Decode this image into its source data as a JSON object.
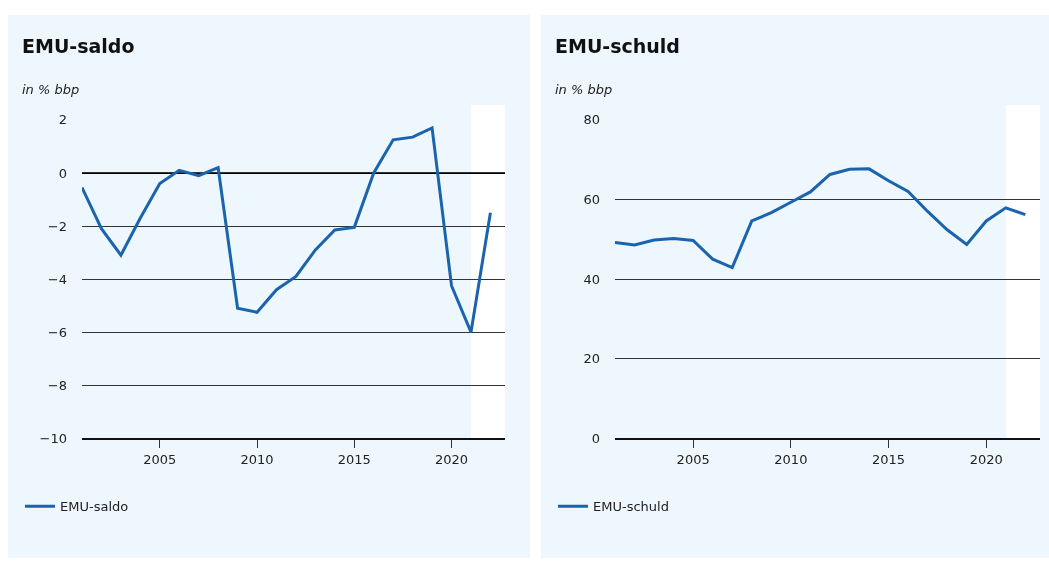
{
  "chart_data": [
    {
      "type": "line",
      "title": "EMU-saldo",
      "ylabel": "in % bbp",
      "x": [
        2001,
        2002,
        2003,
        2004,
        2005,
        2006,
        2007,
        2008,
        2009,
        2010,
        2011,
        2012,
        2013,
        2014,
        2015,
        2016,
        2017,
        2018,
        2019,
        2020,
        2021,
        2022
      ],
      "series": [
        {
          "name": "EMU-saldo",
          "color": "#1a64ae",
          "values": [
            -0.55,
            -2.1,
            -3.1,
            -1.7,
            -0.4,
            0.1,
            -0.1,
            0.2,
            -5.1,
            -5.25,
            -4.4,
            -3.9,
            -2.9,
            -2.15,
            -2.05,
            0,
            1.25,
            1.35,
            1.7,
            -4.25,
            -6,
            -1.5
          ]
        }
      ],
      "xlim": [
        2001,
        2022.75
      ],
      "xticks": [
        2005,
        2010,
        2015,
        2020
      ],
      "ylim": [
        -10,
        2
      ],
      "yticks": [
        {
          "value": -10,
          "label": "−10"
        },
        {
          "value": -8,
          "label": "−8"
        },
        {
          "value": -6,
          "label": "−6"
        },
        {
          "value": -4,
          "label": "−4"
        },
        {
          "value": -2,
          "label": "−2"
        },
        0,
        2
      ],
      "ref_lines": [
        {
          "axis": "y",
          "value": 0,
          "color": "#000000"
        }
      ],
      "bands": [
        {
          "axis": "x",
          "from": 2021,
          "to": 2022.75,
          "color": "#ffffff"
        }
      ],
      "grid": "y",
      "legend": "bottom left",
      "marker": "none",
      "line_style": "solid"
    },
    {
      "type": "line",
      "title": "EMU-schuld",
      "ylabel": "in % bbp",
      "x": [
        2001,
        2002,
        2003,
        2004,
        2005,
        2006,
        2007,
        2008,
        2009,
        2010,
        2011,
        2012,
        2013,
        2014,
        2015,
        2016,
        2017,
        2018,
        2019,
        2020,
        2021,
        2022
      ],
      "series": [
        {
          "name": "EMU-schuld",
          "color": "#1a64ae",
          "values": [
            49.2,
            48.6,
            49.8,
            50.2,
            49.7,
            45.0,
            42.9,
            54.6,
            56.7,
            59.3,
            61.9,
            66.3,
            67.6,
            67.7,
            64.7,
            62.0,
            57.0,
            52.4,
            48.7,
            54.6,
            57.9,
            56.2
          ]
        }
      ],
      "xlim": [
        2001,
        2022.75
      ],
      "xticks": [
        2005,
        2010,
        2015,
        2020
      ],
      "ylim": [
        0,
        80
      ],
      "yticks": [
        0,
        20,
        40,
        60,
        80
      ],
      "bands": [
        {
          "axis": "x",
          "from": 2021,
          "to": 2022.75,
          "color": "#ffffff"
        }
      ],
      "grid": "y",
      "legend": "bottom left",
      "marker": "none",
      "line_style": "solid"
    }
  ]
}
